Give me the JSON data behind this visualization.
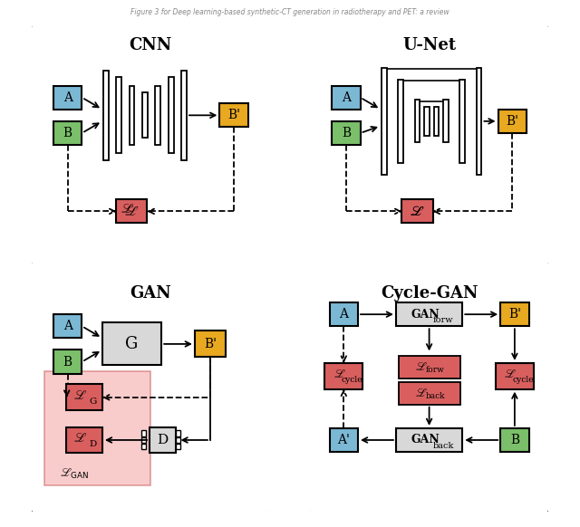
{
  "colors": {
    "blue_box": "#7BB8D4",
    "green_box": "#7BBF6A",
    "yellow_box": "#E8A820",
    "red_box": "#D95F5F",
    "gray_box": "#D8D8D8",
    "white": "#FFFFFF",
    "pink_bg": "#F5AAAA",
    "black": "#000000"
  },
  "panel_titles": [
    "CNN",
    "U-Net",
    "GAN",
    "Cycle-GAN"
  ],
  "fig_title": "Figure 3 for Deep learning-based synthetic-CT generation in radiotherapy and PET: a review"
}
